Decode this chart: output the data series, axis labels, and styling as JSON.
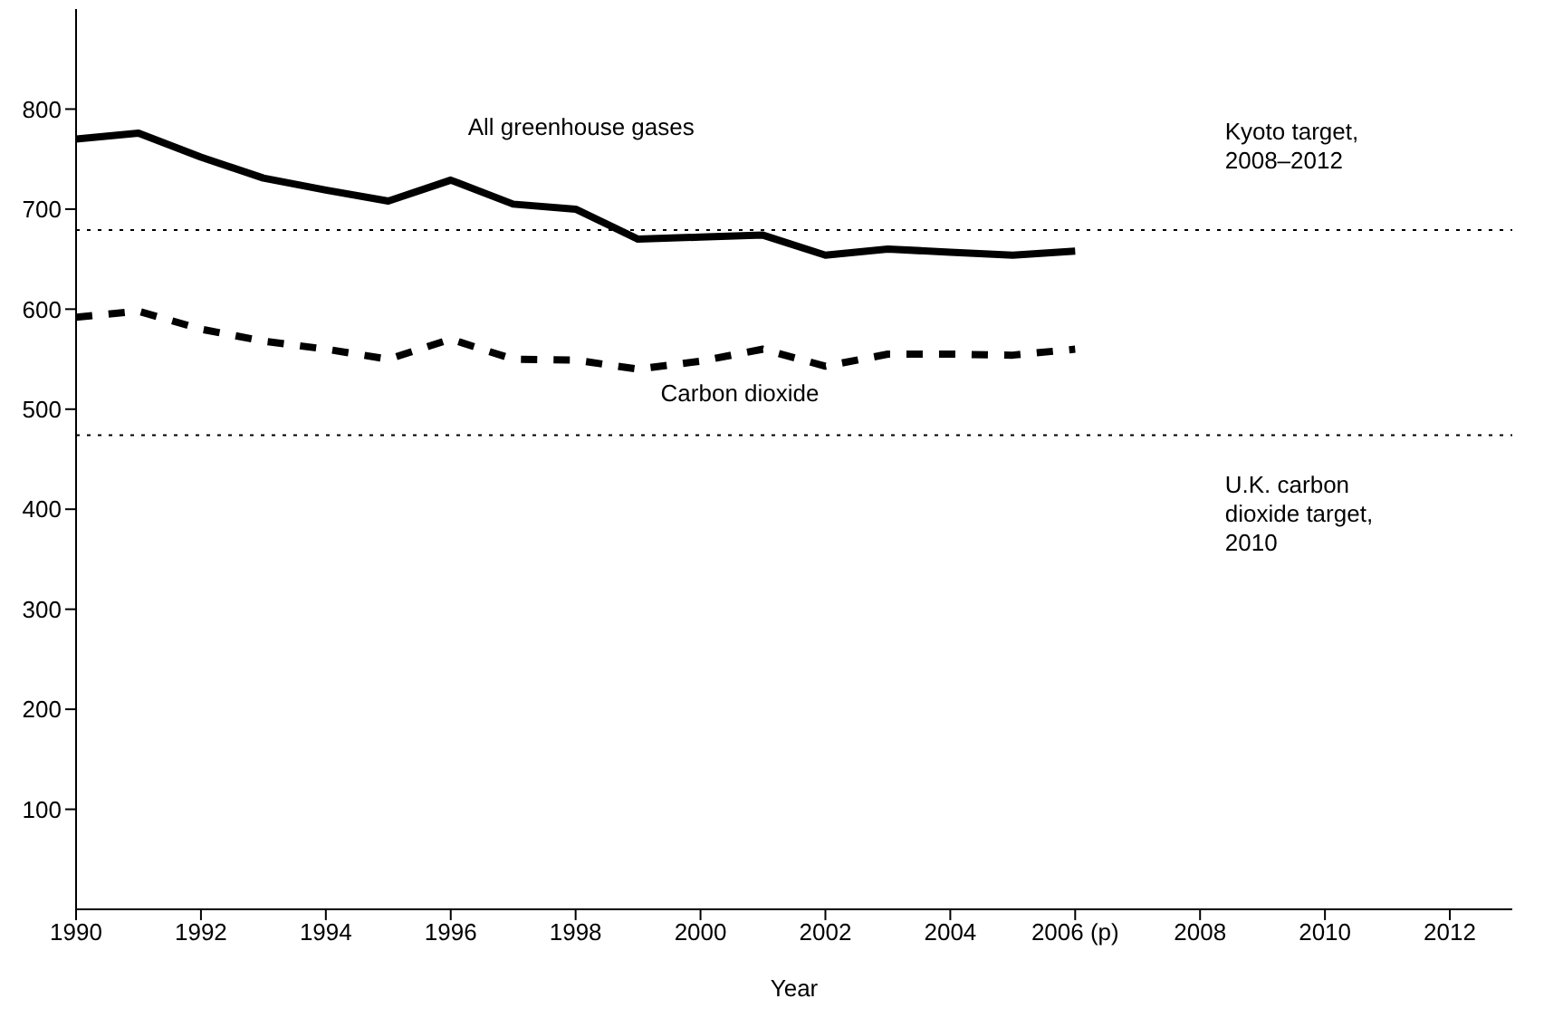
{
  "chart_data": {
    "type": "line",
    "xlabel": "Year",
    "x": [
      1990,
      1991,
      1992,
      1993,
      1994,
      1995,
      1996,
      1997,
      1998,
      1999,
      2000,
      2001,
      2002,
      2003,
      2004,
      2005,
      2006
    ],
    "xlim": [
      1990,
      2013
    ],
    "xticks": [
      1990,
      1992,
      1994,
      1996,
      1998,
      2000,
      2002,
      2004,
      {
        "value": 2006,
        "label": "2006 (p)"
      },
      2008,
      2010,
      2012
    ],
    "ylim": [
      0,
      900
    ],
    "yticks": [
      100,
      200,
      300,
      400,
      500,
      600,
      700,
      800
    ],
    "marker": "none",
    "series": [
      {
        "name": "All greenhouse gases",
        "color": "#000000",
        "line_style": "solid",
        "values": [
          770,
          776,
          752,
          731,
          719,
          708,
          729,
          705,
          700,
          670,
          672,
          674,
          654,
          660,
          657,
          654,
          658
        ]
      },
      {
        "name": "Carbon dioxide",
        "color": "#000000",
        "line_style": "dashed",
        "values": [
          592,
          598,
          580,
          568,
          560,
          550,
          570,
          550,
          549,
          540,
          548,
          560,
          543,
          555,
          555,
          554,
          560
        ]
      }
    ],
    "ref_lines": [
      {
        "axis": "y",
        "value": 679,
        "label": "Kyoto target, 2008–2012",
        "color": "#000000",
        "line_style": "dotted"
      },
      {
        "axis": "y",
        "value": 474,
        "label": "U.K. carbon dioxide target, 2010",
        "color": "#000000",
        "line_style": "dotted"
      }
    ]
  }
}
